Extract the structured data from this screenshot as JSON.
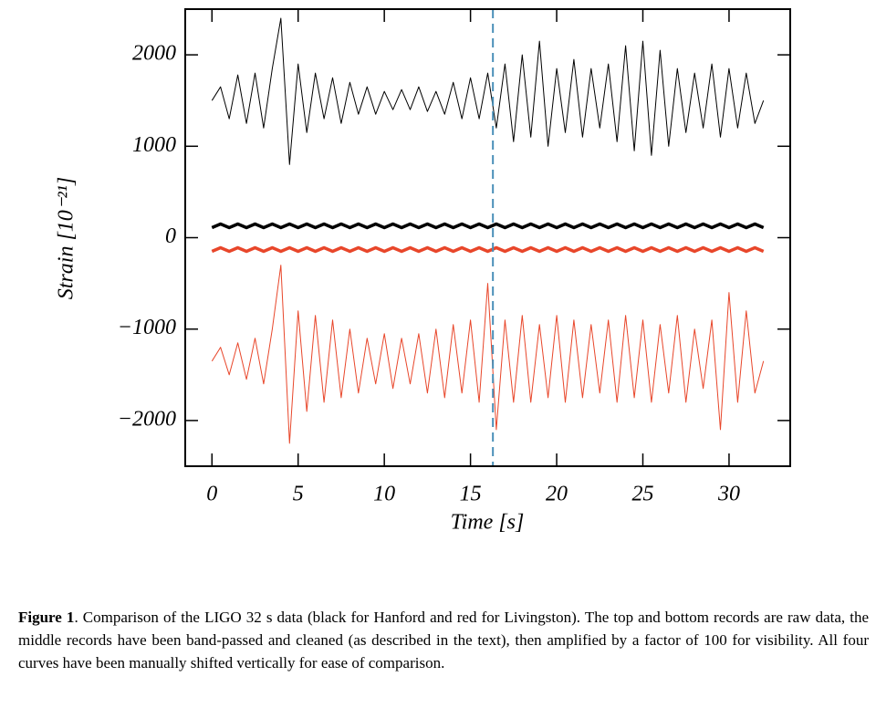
{
  "chart_data": {
    "type": "line",
    "xlabel": "Time [s]",
    "ylabel": "Strain [10⁻²¹]",
    "xlim": [
      -1.55,
      33.55
    ],
    "ylim": [
      -2500,
      2500
    ],
    "xticks": [
      0,
      5,
      10,
      15,
      20,
      25,
      30
    ],
    "yticks": [
      {
        "value": -2000,
        "label": "−2000"
      },
      {
        "value": -1000,
        "label": "−1000"
      },
      0,
      1000,
      2000
    ],
    "vline": 16.3,
    "vline_color": "#4a90b8",
    "x": [
      0,
      0.5,
      1,
      1.5,
      2,
      2.5,
      3,
      3.5,
      4,
      4.5,
      5,
      5.5,
      6,
      6.5,
      7,
      7.5,
      8,
      8.5,
      9,
      9.5,
      10,
      10.5,
      11,
      11.5,
      12,
      12.5,
      13,
      13.5,
      14,
      14.5,
      15,
      15.5,
      16,
      16.5,
      17,
      17.5,
      18,
      18.5,
      19,
      19.5,
      20,
      20.5,
      21,
      21.5,
      22,
      22.5,
      23,
      23.5,
      24,
      24.5,
      25,
      25.5,
      26,
      26.5,
      27,
      27.5,
      28,
      28.5,
      29,
      29.5,
      30,
      30.5,
      31,
      31.5,
      32
    ],
    "series": [
      {
        "color": "#000000",
        "line_width": 1,
        "values": [
          1500,
          1650,
          1300,
          1780,
          1250,
          1800,
          1200,
          1850,
          2400,
          800,
          1900,
          1150,
          1800,
          1300,
          1750,
          1250,
          1700,
          1350,
          1650,
          1350,
          1600,
          1400,
          1620,
          1400,
          1650,
          1380,
          1600,
          1350,
          1700,
          1300,
          1750,
          1300,
          1800,
          1200,
          1900,
          1050,
          2000,
          1100,
          2150,
          1000,
          1850,
          1150,
          1950,
          1100,
          1850,
          1200,
          1900,
          1050,
          2100,
          950,
          2150,
          900,
          2050,
          1000,
          1850,
          1150,
          1800,
          1200,
          1900,
          1100,
          1850,
          1200,
          1800,
          1250,
          1500
        ]
      },
      {
        "color": "#000000",
        "line_width": 3.5,
        "values": [
          110,
          150,
          110,
          150,
          110,
          150,
          110,
          150,
          110,
          150,
          110,
          150,
          110,
          150,
          110,
          150,
          110,
          150,
          110,
          150,
          110,
          150,
          110,
          150,
          110,
          150,
          110,
          150,
          110,
          150,
          110,
          150,
          110,
          150,
          110,
          150,
          110,
          150,
          110,
          150,
          110,
          150,
          110,
          150,
          110,
          150,
          110,
          150,
          110,
          150,
          110,
          150,
          110,
          150,
          110,
          150,
          110,
          150,
          110,
          150,
          110,
          150,
          110,
          150,
          110
        ]
      },
      {
        "color": "#e8462a",
        "line_width": 3.5,
        "values": [
          -150,
          -110,
          -150,
          -110,
          -150,
          -110,
          -150,
          -110,
          -150,
          -110,
          -150,
          -110,
          -150,
          -110,
          -150,
          -110,
          -150,
          -110,
          -150,
          -110,
          -150,
          -110,
          -150,
          -110,
          -150,
          -110,
          -150,
          -110,
          -150,
          -110,
          -150,
          -110,
          -150,
          -110,
          -150,
          -110,
          -150,
          -110,
          -150,
          -110,
          -150,
          -110,
          -150,
          -110,
          -150,
          -110,
          -150,
          -110,
          -150,
          -110,
          -150,
          -110,
          -150,
          -110,
          -150,
          -110,
          -150,
          -110,
          -150,
          -110,
          -150,
          -110,
          -150,
          -110,
          -150
        ]
      },
      {
        "color": "#e8462a",
        "line_width": 1,
        "values": [
          -1350,
          -1200,
          -1500,
          -1150,
          -1550,
          -1100,
          -1600,
          -1000,
          -300,
          -2250,
          -800,
          -1900,
          -850,
          -1800,
          -900,
          -1750,
          -1000,
          -1700,
          -1100,
          -1600,
          -1050,
          -1650,
          -1100,
          -1600,
          -1050,
          -1700,
          -1000,
          -1750,
          -950,
          -1700,
          -900,
          -1800,
          -500,
          -2100,
          -900,
          -1800,
          -850,
          -1800,
          -950,
          -1750,
          -850,
          -1800,
          -900,
          -1750,
          -950,
          -1700,
          -900,
          -1800,
          -850,
          -1750,
          -900,
          -1800,
          -950,
          -1700,
          -850,
          -1800,
          -1000,
          -1650,
          -900,
          -2100,
          -600,
          -1800,
          -800,
          -1700,
          -1350
        ]
      }
    ]
  },
  "caption": {
    "label": "Figure 1",
    "text": ". Comparison of the LIGO 32 s data (black for Hanford and red for Livingston). The top and bottom records are raw data, the middle records have been band-passed and cleaned (as described in the text), then amplified by a factor of 100 for visibility.  All four curves have been manually shifted vertically for ease of comparison."
  }
}
